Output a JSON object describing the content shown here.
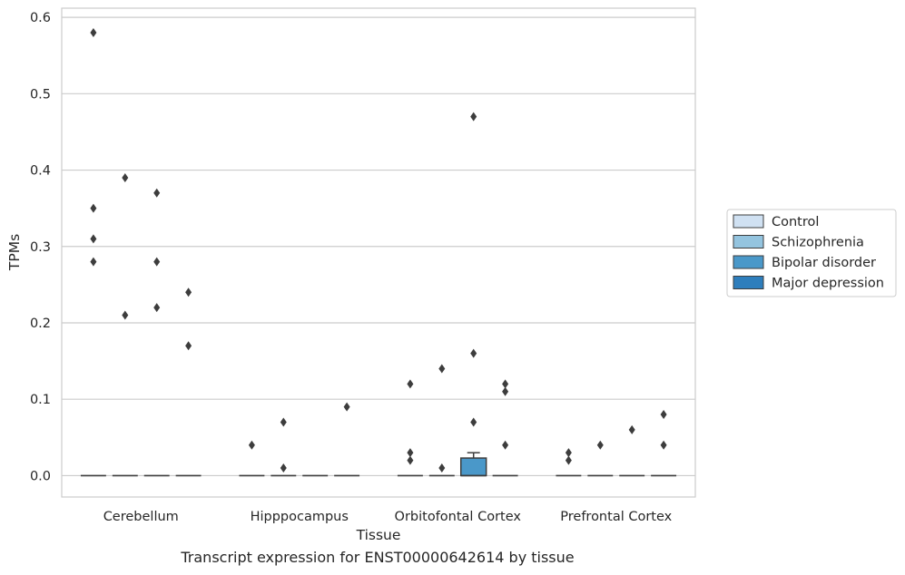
{
  "caption": "Transcript expression for ENST00000642614 by tissue",
  "chart_data": {
    "type": "box",
    "title": "",
    "xlabel": "Tissue",
    "ylabel": "TPMs",
    "ylim": [
      -0.028,
      0.612
    ],
    "yticks": [
      0.0,
      0.1,
      0.2,
      0.3,
      0.4,
      0.5,
      0.6
    ],
    "ytick_labels": [
      "0.0",
      "0.1",
      "0.2",
      "0.3",
      "0.4",
      "0.5",
      "0.6"
    ],
    "grid": "horizontal",
    "legend_position": "right",
    "categories": [
      "Cerebellum",
      "Hipppocampus",
      "Orbitofontal Cortex",
      "Prefrontal Cortex"
    ],
    "series": [
      {
        "name": "Control",
        "color": "#d0e1f2",
        "boxes": [
          {
            "q1": 0,
            "median": 0,
            "q3": 0,
            "whisker_low": 0,
            "whisker_high": 0,
            "outliers": [
              0.58,
              0.35,
              0.31,
              0.28
            ]
          },
          {
            "q1": 0,
            "median": 0,
            "q3": 0,
            "whisker_low": 0,
            "whisker_high": 0,
            "outliers": [
              0.04
            ]
          },
          {
            "q1": 0,
            "median": 0,
            "q3": 0,
            "whisker_low": 0,
            "whisker_high": 0,
            "outliers": [
              0.12,
              0.03,
              0.02
            ]
          },
          {
            "q1": 0,
            "median": 0,
            "q3": 0,
            "whisker_low": 0,
            "whisker_high": 0,
            "outliers": [
              0.03,
              0.02
            ]
          }
        ]
      },
      {
        "name": "Schizophrenia",
        "color": "#94c4df",
        "boxes": [
          {
            "q1": 0,
            "median": 0,
            "q3": 0,
            "whisker_low": 0,
            "whisker_high": 0,
            "outliers": [
              0.39,
              0.21
            ]
          },
          {
            "q1": 0,
            "median": 0,
            "q3": 0,
            "whisker_low": 0,
            "whisker_high": 0,
            "outliers": [
              0.07,
              0.01
            ]
          },
          {
            "q1": 0,
            "median": 0,
            "q3": 0,
            "whisker_low": 0,
            "whisker_high": 0,
            "outliers": [
              0.14,
              0.01
            ]
          },
          {
            "q1": 0,
            "median": 0,
            "q3": 0,
            "whisker_low": 0,
            "whisker_high": 0,
            "outliers": [
              0.04
            ]
          }
        ]
      },
      {
        "name": "Bipolar disorder",
        "color": "#4a98c9",
        "boxes": [
          {
            "q1": 0,
            "median": 0,
            "q3": 0,
            "whisker_low": 0,
            "whisker_high": 0,
            "outliers": [
              0.37,
              0.28,
              0.22
            ]
          },
          {
            "q1": 0,
            "median": 0,
            "q3": 0,
            "whisker_low": 0,
            "whisker_high": 0,
            "outliers": []
          },
          {
            "q1": 0,
            "median": 0,
            "q3": 0.023,
            "whisker_low": 0,
            "whisker_high": 0.03,
            "outliers": [
              0.47,
              0.16,
              0.07
            ]
          },
          {
            "q1": 0,
            "median": 0,
            "q3": 0,
            "whisker_low": 0,
            "whisker_high": 0,
            "outliers": [
              0.06
            ]
          }
        ]
      },
      {
        "name": "Major depression",
        "color": "#2e7ebc",
        "boxes": [
          {
            "q1": 0,
            "median": 0,
            "q3": 0,
            "whisker_low": 0,
            "whisker_high": 0,
            "outliers": [
              0.24,
              0.17
            ]
          },
          {
            "q1": 0,
            "median": 0,
            "q3": 0,
            "whisker_low": 0,
            "whisker_high": 0,
            "outliers": [
              0.09
            ]
          },
          {
            "q1": 0,
            "median": 0,
            "q3": 0,
            "whisker_low": 0,
            "whisker_high": 0,
            "outliers": [
              0.12,
              0.11,
              0.04
            ]
          },
          {
            "q1": 0,
            "median": 0,
            "q3": 0,
            "whisker_low": 0,
            "whisker_high": 0,
            "outliers": [
              0.08,
              0.04
            ]
          }
        ]
      }
    ],
    "colors": {
      "median_line": "#3d3d3d",
      "outlier": "#3d3d3d",
      "grid": "#cccccc",
      "frame": "#cccccc",
      "box_edge": "#3d3d3d"
    }
  }
}
